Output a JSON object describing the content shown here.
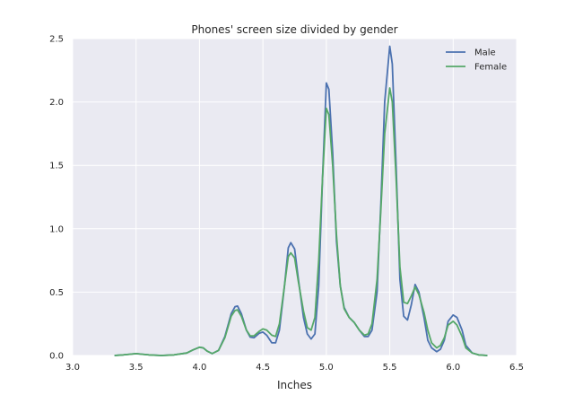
{
  "chart_data": {
    "type": "line",
    "title": "Phones' screen size divided by gender",
    "xlabel": "Inches",
    "ylabel": "",
    "xlim": [
      3.0,
      6.5
    ],
    "ylim": [
      0.0,
      2.5
    ],
    "xticks": [
      "3.0",
      "3.5",
      "4.0",
      "4.5",
      "5.0",
      "5.5",
      "6.0",
      "6.5"
    ],
    "yticks": [
      "0.0",
      "0.5",
      "1.0",
      "1.5",
      "2.0",
      "2.5"
    ],
    "grid": true,
    "legend_position": "top-right",
    "colors": {
      "background": "#eaeaf2",
      "grid": "#ffffff",
      "text": "#262626"
    },
    "series": [
      {
        "name": "Male",
        "color": "#4c72b0",
        "x": [
          3.33,
          3.4,
          3.45,
          3.5,
          3.55,
          3.6,
          3.7,
          3.8,
          3.9,
          3.95,
          4.0,
          4.03,
          4.06,
          4.1,
          4.15,
          4.2,
          4.25,
          4.28,
          4.3,
          4.33,
          4.37,
          4.4,
          4.43,
          4.47,
          4.5,
          4.53,
          4.57,
          4.6,
          4.63,
          4.67,
          4.7,
          4.72,
          4.75,
          4.78,
          4.82,
          4.85,
          4.88,
          4.91,
          4.94,
          4.97,
          5.0,
          5.02,
          5.05,
          5.08,
          5.11,
          5.14,
          5.18,
          5.22,
          5.26,
          5.3,
          5.33,
          5.36,
          5.4,
          5.43,
          5.46,
          5.5,
          5.52,
          5.55,
          5.58,
          5.61,
          5.64,
          5.67,
          5.7,
          5.73,
          5.77,
          5.8,
          5.83,
          5.87,
          5.9,
          5.93,
          5.96,
          6.0,
          6.03,
          6.07,
          6.1,
          6.15,
          6.2,
          6.27
        ],
        "y": [
          0.0,
          0.005,
          0.01,
          0.015,
          0.01,
          0.005,
          0.0,
          0.005,
          0.02,
          0.045,
          0.065,
          0.06,
          0.035,
          0.015,
          0.04,
          0.15,
          0.33,
          0.385,
          0.39,
          0.33,
          0.2,
          0.145,
          0.14,
          0.175,
          0.185,
          0.16,
          0.1,
          0.1,
          0.2,
          0.55,
          0.85,
          0.89,
          0.84,
          0.6,
          0.3,
          0.17,
          0.13,
          0.17,
          0.55,
          1.4,
          2.15,
          2.1,
          1.6,
          0.9,
          0.55,
          0.38,
          0.3,
          0.26,
          0.2,
          0.15,
          0.15,
          0.2,
          0.5,
          1.2,
          2.0,
          2.44,
          2.3,
          1.5,
          0.6,
          0.31,
          0.28,
          0.4,
          0.56,
          0.5,
          0.3,
          0.12,
          0.06,
          0.03,
          0.05,
          0.12,
          0.27,
          0.32,
          0.3,
          0.2,
          0.08,
          0.02,
          0.005,
          0.0
        ]
      },
      {
        "name": "Female",
        "color": "#55a868",
        "x": [
          3.33,
          3.4,
          3.45,
          3.5,
          3.55,
          3.6,
          3.7,
          3.8,
          3.9,
          3.95,
          4.0,
          4.03,
          4.06,
          4.1,
          4.15,
          4.2,
          4.25,
          4.28,
          4.3,
          4.33,
          4.37,
          4.4,
          4.43,
          4.47,
          4.5,
          4.53,
          4.57,
          4.6,
          4.63,
          4.67,
          4.7,
          4.72,
          4.75,
          4.78,
          4.82,
          4.85,
          4.88,
          4.91,
          4.94,
          4.97,
          5.0,
          5.02,
          5.05,
          5.08,
          5.11,
          5.14,
          5.18,
          5.22,
          5.26,
          5.3,
          5.33,
          5.36,
          5.4,
          5.43,
          5.46,
          5.5,
          5.52,
          5.55,
          5.58,
          5.61,
          5.64,
          5.67,
          5.7,
          5.73,
          5.77,
          5.8,
          5.83,
          5.87,
          5.9,
          5.93,
          5.96,
          6.0,
          6.03,
          6.07,
          6.1,
          6.15,
          6.2,
          6.27
        ],
        "y": [
          0.0,
          0.005,
          0.01,
          0.015,
          0.01,
          0.005,
          0.0,
          0.005,
          0.02,
          0.045,
          0.065,
          0.06,
          0.035,
          0.015,
          0.04,
          0.14,
          0.31,
          0.355,
          0.36,
          0.31,
          0.2,
          0.155,
          0.155,
          0.19,
          0.21,
          0.2,
          0.16,
          0.15,
          0.25,
          0.55,
          0.78,
          0.81,
          0.77,
          0.58,
          0.35,
          0.22,
          0.2,
          0.3,
          0.75,
          1.4,
          1.95,
          1.9,
          1.5,
          0.95,
          0.55,
          0.37,
          0.3,
          0.26,
          0.2,
          0.16,
          0.17,
          0.25,
          0.6,
          1.15,
          1.75,
          2.11,
          2.0,
          1.4,
          0.7,
          0.42,
          0.41,
          0.47,
          0.54,
          0.48,
          0.34,
          0.2,
          0.1,
          0.06,
          0.08,
          0.14,
          0.24,
          0.27,
          0.24,
          0.15,
          0.06,
          0.02,
          0.005,
          0.0
        ]
      }
    ]
  }
}
